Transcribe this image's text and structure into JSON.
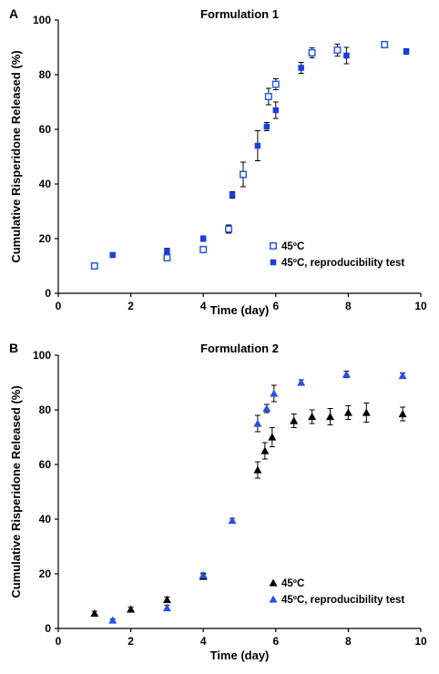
{
  "chart_data": [
    {
      "type": "scatter",
      "panel_label": "A",
      "title": "Formulation 1",
      "xlabel": "Time (day)",
      "ylabel": "Cumulative Risperidone Released (%)",
      "xlim": [
        0,
        10
      ],
      "ylim": [
        0,
        100
      ],
      "xticks": [
        0,
        2,
        4,
        6,
        8,
        10
      ],
      "yticks": [
        0,
        20,
        40,
        60,
        80,
        100
      ],
      "grid": false,
      "legend_position": "bottom-right",
      "series": [
        {
          "name": "45ºC",
          "marker": "open-square",
          "color": "#2b5fd9",
          "points": [
            {
              "x": 1.0,
              "y": 10,
              "err": 0.8
            },
            {
              "x": 3.0,
              "y": 13,
              "err": 1.0
            },
            {
              "x": 4.0,
              "y": 16,
              "err": 1.2
            },
            {
              "x": 4.7,
              "y": 23.5,
              "err": 1.5
            },
            {
              "x": 5.1,
              "y": 43.5,
              "err": 4.5
            },
            {
              "x": 5.8,
              "y": 72,
              "err": 3.0
            },
            {
              "x": 6.0,
              "y": 76.5,
              "err": 2.0
            },
            {
              "x": 7.0,
              "y": 88,
              "err": 1.8
            },
            {
              "x": 7.7,
              "y": 89,
              "err": 2.2
            },
            {
              "x": 9.0,
              "y": 91,
              "err": 1.2
            }
          ]
        },
        {
          "name": "45ºC, reproducibility test",
          "marker": "filled-square",
          "color": "#1a3fe0",
          "points": [
            {
              "x": 1.5,
              "y": 14,
              "err": 0.8
            },
            {
              "x": 3.0,
              "y": 15.5,
              "err": 1.0
            },
            {
              "x": 4.0,
              "y": 20,
              "err": 1.0
            },
            {
              "x": 4.8,
              "y": 36,
              "err": 1.2
            },
            {
              "x": 5.5,
              "y": 54,
              "err": 5.5
            },
            {
              "x": 5.75,
              "y": 61,
              "err": 1.5
            },
            {
              "x": 6.0,
              "y": 67,
              "err": 3.0
            },
            {
              "x": 6.7,
              "y": 82.5,
              "err": 2.0
            },
            {
              "x": 7.95,
              "y": 87,
              "err": 3.0
            },
            {
              "x": 9.6,
              "y": 88.5,
              "err": 1.0
            }
          ]
        }
      ]
    },
    {
      "type": "scatter",
      "panel_label": "B",
      "title": "Formulation 2",
      "xlabel": "Time (day)",
      "ylabel": "Cumulative Risperidone Released (%)",
      "xlim": [
        0,
        10
      ],
      "ylim": [
        0,
        100
      ],
      "xticks": [
        0,
        2,
        4,
        6,
        8,
        10
      ],
      "yticks": [
        0,
        20,
        40,
        60,
        80,
        100
      ],
      "grid": false,
      "legend_position": "bottom-right",
      "series": [
        {
          "name": "45ºC",
          "marker": "filled-triangle",
          "color": "#000000",
          "points": [
            {
              "x": 1.0,
              "y": 5.5,
              "err": 0.8
            },
            {
              "x": 2.0,
              "y": 7,
              "err": 0.8
            },
            {
              "x": 3.0,
              "y": 10.5,
              "err": 1.0
            },
            {
              "x": 4.0,
              "y": 19,
              "err": 1.0
            },
            {
              "x": 5.5,
              "y": 58,
              "err": 3.0
            },
            {
              "x": 5.7,
              "y": 65,
              "err": 3.0
            },
            {
              "x": 5.9,
              "y": 70,
              "err": 3.5
            },
            {
              "x": 6.5,
              "y": 76,
              "err": 2.5
            },
            {
              "x": 7.0,
              "y": 77.5,
              "err": 2.5
            },
            {
              "x": 7.5,
              "y": 77.5,
              "err": 3.0
            },
            {
              "x": 8.0,
              "y": 79,
              "err": 2.5
            },
            {
              "x": 8.5,
              "y": 79,
              "err": 3.5
            },
            {
              "x": 9.5,
              "y": 78.5,
              "err": 2.5
            }
          ]
        },
        {
          "name": "45ºC, reproducibility test",
          "marker": "filled-triangle",
          "color": "#2950e6",
          "points": [
            {
              "x": 1.5,
              "y": 3,
              "err": 0.5
            },
            {
              "x": 3.0,
              "y": 7.5,
              "err": 1.0
            },
            {
              "x": 4.0,
              "y": 19.5,
              "err": 0.8
            },
            {
              "x": 4.8,
              "y": 39.5,
              "err": 0.8
            },
            {
              "x": 5.5,
              "y": 75,
              "err": 3.0
            },
            {
              "x": 5.75,
              "y": 80.5,
              "err": 1.5
            },
            {
              "x": 5.95,
              "y": 86,
              "err": 3.0
            },
            {
              "x": 6.7,
              "y": 90,
              "err": 1.0
            },
            {
              "x": 7.95,
              "y": 93,
              "err": 1.2
            },
            {
              "x": 9.5,
              "y": 92.5,
              "err": 1.0
            }
          ]
        }
      ]
    }
  ]
}
